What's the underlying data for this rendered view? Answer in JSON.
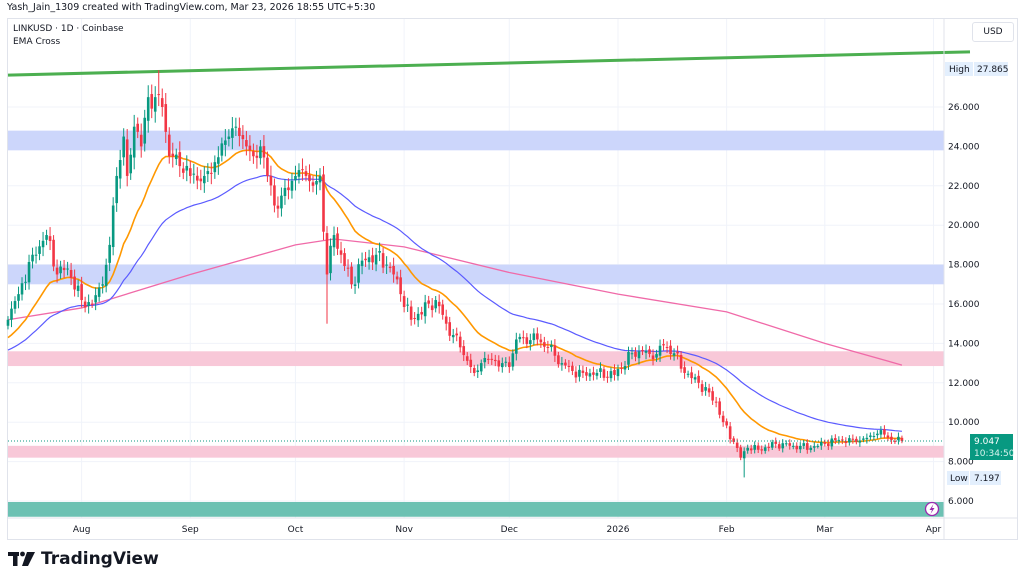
{
  "credit": "Yash_Jain_1309 created with TradingView.com, Mar 23, 2026 18:55 UTC+5:30",
  "legend": {
    "symbol_line": "LINKUSD · 1D · Coinbase",
    "indicator": "EMA Cross"
  },
  "currency_button": "USD",
  "brand": "TradingView",
  "colors": {
    "up": "#089981",
    "down": "#f23645",
    "ema_fast": "#ff9800",
    "ema_slow": "#5b5bff",
    "ema_long": "#f06aa8",
    "trendline": "#4caf50",
    "zone_blue": "#ccd6fb",
    "zone_pink": "#f8c8d8",
    "zone_teal": "#6cc1b3"
  },
  "icons": {
    "flash": "lightning-bolt-icon"
  },
  "chart_data": {
    "type": "candlestick",
    "symbol": "LINKUSD",
    "interval": "1D",
    "exchange": "Coinbase",
    "ylim": [
      5.1,
      29.4
    ],
    "xlim": [
      "2025-07-11",
      "2026-04-04"
    ],
    "y_ticks": [
      "26.000",
      "24.000",
      "22.000",
      "20.000",
      "18.000",
      "16.000",
      "14.000",
      "12.000",
      "10.000",
      "8.000",
      "6.000"
    ],
    "x_ticks": [
      {
        "label": "Aug",
        "date": "2025-08-01"
      },
      {
        "label": "Sep",
        "date": "2025-09-01"
      },
      {
        "label": "Oct",
        "date": "2025-10-01"
      },
      {
        "label": "Nov",
        "date": "2025-11-01"
      },
      {
        "label": "Dec",
        "date": "2025-12-01"
      },
      {
        "label": "2026",
        "date": "2026-01-01"
      },
      {
        "label": "Feb",
        "date": "2026-02-01"
      },
      {
        "label": "Mar",
        "date": "2026-03-01"
      },
      {
        "label": "Apr",
        "date": "2026-04-01"
      }
    ],
    "grid": true,
    "high": {
      "label": "High",
      "value": "27.865"
    },
    "low": {
      "label": "Low",
      "value": "7.197"
    },
    "last_price": {
      "value": "9.047",
      "countdown": "10:34:50"
    },
    "close_keypoints": [
      [
        "2025-07-11",
        15.2
      ],
      [
        "2025-07-14",
        16.5
      ],
      [
        "2025-07-18",
        18.5
      ],
      [
        "2025-07-22",
        19.5
      ],
      [
        "2025-07-25",
        17.5
      ],
      [
        "2025-07-28",
        17.8
      ],
      [
        "2025-08-01",
        16.2
      ],
      [
        "2025-08-04",
        16.0
      ],
      [
        "2025-08-07",
        17.0
      ],
      [
        "2025-08-09",
        19
      ],
      [
        "2025-08-10",
        21
      ],
      [
        "2025-08-11",
        22.5
      ],
      [
        "2025-08-13",
        24.5
      ],
      [
        "2025-08-14",
        22.5
      ],
      [
        "2025-08-16",
        25
      ],
      [
        "2025-08-18",
        24
      ],
      [
        "2025-08-20",
        26.5
      ],
      [
        "2025-08-22",
        26.5
      ],
      [
        "2025-08-24",
        26
      ],
      [
        "2025-08-26",
        23.5
      ],
      [
        "2025-08-29",
        23
      ],
      [
        "2025-09-01",
        22.5
      ],
      [
        "2025-09-05",
        22.5
      ],
      [
        "2025-09-08",
        23.2
      ],
      [
        "2025-09-12",
        24.5
      ],
      [
        "2025-09-14",
        25
      ],
      [
        "2025-09-17",
        24.0
      ],
      [
        "2025-09-19",
        23.5
      ],
      [
        "2025-09-21",
        24
      ],
      [
        "2025-09-23",
        22.5
      ],
      [
        "2025-09-25",
        21
      ],
      [
        "2025-09-27",
        21.5
      ],
      [
        "2025-10-01",
        22.5
      ],
      [
        "2025-10-04",
        22.5
      ],
      [
        "2025-10-06",
        22
      ],
      [
        "2025-10-08",
        22.5
      ],
      [
        "2025-10-10",
        17.5
      ],
      [
        "2025-10-12",
        19.5
      ],
      [
        "2025-10-14",
        18.5
      ],
      [
        "2025-10-17",
        17.0
      ],
      [
        "2025-10-20",
        18.2
      ],
      [
        "2025-10-24",
        18.5
      ],
      [
        "2025-10-27",
        18.0
      ],
      [
        "2025-10-29",
        17.5
      ],
      [
        "2025-10-31",
        16.5
      ],
      [
        "2025-11-03",
        15.2
      ],
      [
        "2025-11-05",
        15.5
      ],
      [
        "2025-11-10",
        16.2
      ],
      [
        "2025-11-13",
        15.0
      ],
      [
        "2025-11-17",
        13.8
      ],
      [
        "2025-11-21",
        12.5
      ],
      [
        "2025-11-23",
        13
      ],
      [
        "2025-11-26",
        13.2
      ],
      [
        "2025-11-29",
        13.0
      ],
      [
        "2025-12-01",
        12.8
      ],
      [
        "2025-12-03",
        14.2
      ],
      [
        "2025-12-05",
        14.3
      ],
      [
        "2025-12-09",
        14.2
      ],
      [
        "2025-12-12",
        13.8
      ],
      [
        "2025-12-16",
        13.0
      ],
      [
        "2025-12-19",
        12.6
      ],
      [
        "2025-12-22",
        12.5
      ],
      [
        "2025-12-26",
        12.5
      ],
      [
        "2025-12-31",
        12.4
      ],
      [
        "2026-01-05",
        13.5
      ],
      [
        "2026-01-08",
        13.6
      ],
      [
        "2026-01-11",
        13.2
      ],
      [
        "2026-01-14",
        13.9
      ],
      [
        "2026-01-17",
        13.5
      ],
      [
        "2026-01-20",
        12.5
      ],
      [
        "2026-01-24",
        12.0
      ],
      [
        "2026-01-29",
        11.0
      ],
      [
        "2026-01-31",
        10.0
      ],
      [
        "2026-02-03",
        9.0
      ],
      [
        "2026-02-05",
        8.2
      ],
      [
        "2026-02-07",
        8.7
      ],
      [
        "2026-02-10",
        8.6
      ],
      [
        "2026-02-15",
        8.9
      ],
      [
        "2026-02-20",
        8.8
      ],
      [
        "2026-02-25",
        8.7
      ],
      [
        "2026-03-01",
        8.9
      ],
      [
        "2026-03-05",
        9.1
      ],
      [
        "2026-03-10",
        9.0
      ],
      [
        "2026-03-15",
        9.3
      ],
      [
        "2026-03-17",
        9.6
      ],
      [
        "2026-03-20",
        9.1
      ],
      [
        "2026-03-23",
        9.047
      ]
    ],
    "ema_long_keypoints": [
      [
        "2025-07-11",
        15.2
      ],
      [
        "2025-08-01",
        15.8
      ],
      [
        "2025-09-01",
        17.5
      ],
      [
        "2025-10-01",
        19.0
      ],
      [
        "2025-10-12",
        19.3
      ],
      [
        "2025-11-01",
        18.9
      ],
      [
        "2025-12-01",
        17.6
      ],
      [
        "2026-01-01",
        16.5
      ],
      [
        "2026-02-01",
        15.6
      ],
      [
        "2026-03-01",
        14.0
      ],
      [
        "2026-03-23",
        12.9
      ]
    ],
    "zones": [
      {
        "color": "blue",
        "from": 23.8,
        "to": 24.8
      },
      {
        "color": "blue",
        "from": 17.0,
        "to": 18.0
      },
      {
        "color": "pink",
        "from": 12.85,
        "to": 13.6
      },
      {
        "color": "pink",
        "from": 8.2,
        "to": 8.8
      },
      {
        "color": "teal",
        "from": 5.2,
        "to": 5.95
      }
    ],
    "trendline": [
      [
        "2025-07-11",
        27.62
      ],
      [
        "2026-04-04",
        28.84
      ]
    ]
  }
}
